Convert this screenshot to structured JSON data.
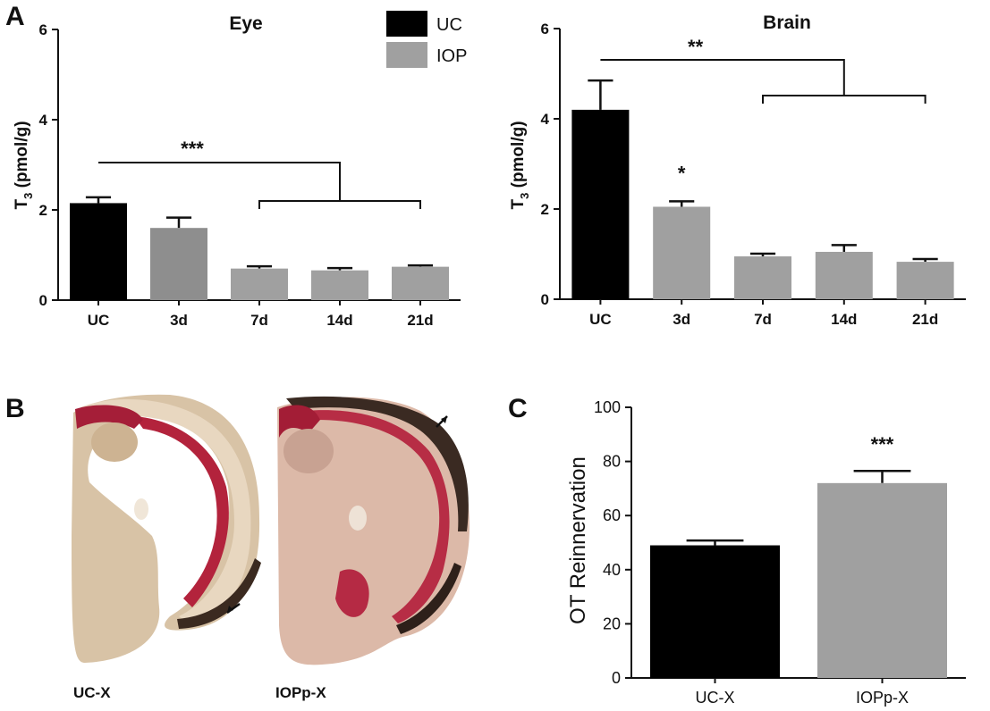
{
  "panels": {
    "a": "A",
    "b": "B",
    "c": "C"
  },
  "legend": [
    {
      "label": "UC",
      "color": "#000000"
    },
    {
      "label": "IOP",
      "color": "#a0a0a0"
    }
  ],
  "colors": {
    "uc": "#000000",
    "iop": "#a0a0a0",
    "iop_dark": "#8e8e8e",
    "tissue_beige": "#d9c6ad",
    "tissue_red": "#c0394f",
    "tissue_dark": "#3a2a22"
  },
  "images": [
    {
      "label": "UC-X",
      "icon": "brain-section-uc-image"
    },
    {
      "label": "IOPp-X",
      "icon": "brain-section-iop-image"
    }
  ],
  "chart_data": [
    {
      "type": "bar",
      "title": "Eye",
      "ylabel": "T3 (pmol/g)",
      "ylabel_main": "T",
      "ylabel_sub": "3",
      "ylabel_rest": " (pmol/g)",
      "ylim": [
        0,
        6
      ],
      "yticks": [
        "0",
        "2",
        "4",
        "6"
      ],
      "categories": [
        "UC",
        "3d",
        "7d",
        "14d",
        "21d"
      ],
      "values": [
        2.15,
        1.6,
        0.7,
        0.66,
        0.74
      ],
      "errors": [
        0.13,
        0.23,
        0.05,
        0.05,
        0.03
      ],
      "groups": [
        "UC",
        "IOP",
        "IOP",
        "IOP",
        "IOP"
      ],
      "significance": "***"
    },
    {
      "type": "bar",
      "title": "Brain",
      "ylabel": "T3 (pmol/g)",
      "ylabel_main": "T",
      "ylabel_sub": "3",
      "ylabel_rest": " (pmol/g)",
      "ylim": [
        0,
        6
      ],
      "yticks": [
        "0",
        "2",
        "4",
        "6"
      ],
      "categories": [
        "UC",
        "3d",
        "7d",
        "14d",
        "21d"
      ],
      "values": [
        4.2,
        2.05,
        0.95,
        1.05,
        0.83
      ],
      "errors": [
        0.65,
        0.12,
        0.06,
        0.15,
        0.06
      ],
      "groups": [
        "UC",
        "IOP",
        "IOP",
        "IOP",
        "IOP"
      ],
      "significance": "**",
      "bar_annotation": "*"
    },
    {
      "type": "bar",
      "title": "",
      "ylabel": "OT Reinnervation",
      "ylim": [
        0,
        100
      ],
      "yticks": [
        "0",
        "20",
        "40",
        "60",
        "80",
        "100"
      ],
      "categories": [
        "UC-X",
        "IOPp-X"
      ],
      "values": [
        49,
        72
      ],
      "errors": [
        1.8,
        4.5
      ],
      "groups": [
        "UC",
        "IOP"
      ],
      "significance": "***"
    }
  ]
}
